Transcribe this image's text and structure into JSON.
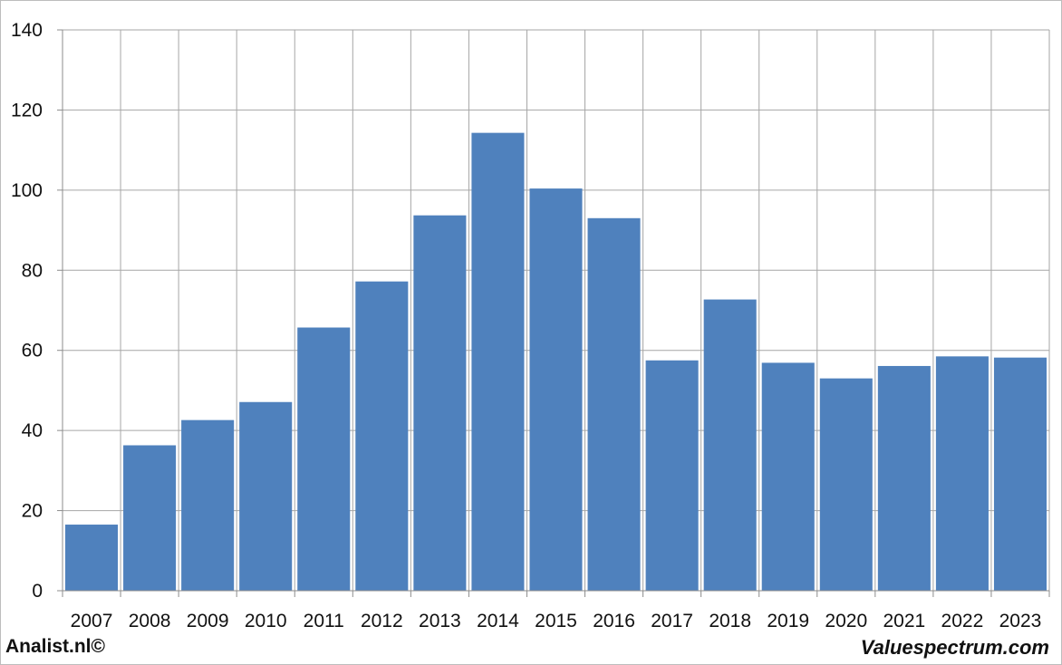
{
  "chart_data": {
    "type": "bar",
    "categories": [
      "2007",
      "2008",
      "2009",
      "2010",
      "2011",
      "2012",
      "2013",
      "2014",
      "2015",
      "2016",
      "2017",
      "2018",
      "2019",
      "2020",
      "2021",
      "2022",
      "2023"
    ],
    "values": [
      16.5,
      36.3,
      42.6,
      47.1,
      65.7,
      77.2,
      93.7,
      114.3,
      100.4,
      93.0,
      57.5,
      72.7,
      56.9,
      53.0,
      56.1,
      58.5,
      58.2
    ],
    "yticks": [
      "0",
      "20",
      "40",
      "60",
      "80",
      "100",
      "120",
      "140"
    ],
    "ylim": [
      0,
      140
    ],
    "grid": true,
    "bar_color": "#4f81bd",
    "grid_color": "#a6a6a6"
  },
  "footer": {
    "left_text": "Analist.nl©",
    "right_text": "Valuespectrum.com"
  }
}
